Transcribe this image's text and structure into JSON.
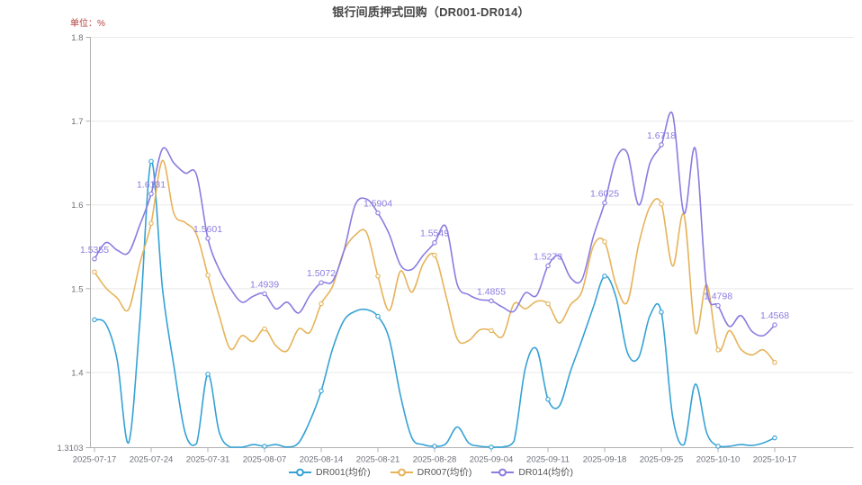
{
  "title": "银行间质押式回购（DR001-DR014）",
  "unit_label": "单位：%",
  "colors": {
    "dr001": "#35a2d5",
    "dr007": "#e6b35a",
    "dr014": "#8a7ce0",
    "grid": "#e9e9e9",
    "axis": "#b0b0b0",
    "axis_text": "#6e7079",
    "annotation_text": "#8a7ce0",
    "title_text": "#464646",
    "unit_text": "#b5413b"
  },
  "chart_data": {
    "type": "line",
    "title": "银行间质押式回购（DR001-DR014）",
    "ylabel": "单位：%",
    "smooth": true,
    "grid": true,
    "legend_position": "bottom",
    "ylim": [
      1.3103,
      1.8
    ],
    "y_tick_labels": [
      "1.8",
      "1.7",
      "1.6",
      "1.5",
      "1.4",
      "1.3103"
    ],
    "y_tick_values": [
      1.8,
      1.7,
      1.6,
      1.5,
      1.4,
      1.3103
    ],
    "x_tick_labels": [
      "2025-07-17",
      "2025-07-24",
      "2025-07-31",
      "2025-08-07",
      "2025-08-14",
      "2025-08-21",
      "2025-08-28",
      "2025-09-04",
      "2025-09-11",
      "2025-09-18",
      "2025-09-25",
      "2025-10-10",
      "2025-10-17"
    ],
    "points_per_tick": 5,
    "point_count": 61,
    "series": [
      {
        "id": "dr001",
        "name": "DR001(均价)",
        "color": "#35a2d5",
        "values": [
          1.463,
          1.458,
          1.415,
          1.316,
          1.46,
          1.652,
          1.5,
          1.408,
          1.328,
          1.315,
          1.398,
          1.329,
          1.3103,
          1.3103,
          1.314,
          1.312,
          1.314,
          1.311,
          1.316,
          1.342,
          1.378,
          1.428,
          1.462,
          1.473,
          1.475,
          1.467,
          1.44,
          1.372,
          1.322,
          1.314,
          1.312,
          1.315,
          1.335,
          1.316,
          1.312,
          1.311,
          1.311,
          1.318,
          1.405,
          1.428,
          1.368,
          1.36,
          1.402,
          1.439,
          1.478,
          1.515,
          1.49,
          1.424,
          1.418,
          1.468,
          1.472,
          1.347,
          1.314,
          1.386,
          1.328,
          1.312,
          1.312,
          1.314,
          1.313,
          1.316,
          1.322
        ]
      },
      {
        "id": "dr007",
        "name": "DR007(均价)",
        "color": "#e6b35a",
        "values": [
          1.52,
          1.501,
          1.489,
          1.475,
          1.53,
          1.578,
          1.653,
          1.59,
          1.579,
          1.565,
          1.516,
          1.468,
          1.428,
          1.444,
          1.437,
          1.452,
          1.432,
          1.426,
          1.452,
          1.448,
          1.482,
          1.503,
          1.545,
          1.564,
          1.567,
          1.515,
          1.474,
          1.521,
          1.496,
          1.53,
          1.54,
          1.492,
          1.44,
          1.438,
          1.451,
          1.45,
          1.443,
          1.482,
          1.476,
          1.485,
          1.482,
          1.459,
          1.481,
          1.497,
          1.551,
          1.556,
          1.505,
          1.484,
          1.553,
          1.598,
          1.601,
          1.527,
          1.588,
          1.448,
          1.505,
          1.427,
          1.45,
          1.428,
          1.421,
          1.427,
          1.412
        ]
      },
      {
        "id": "dr014",
        "name": "DR014(均价)",
        "color": "#8a7ce0",
        "values": [
          1.5355,
          1.555,
          1.546,
          1.543,
          1.576,
          1.6131,
          1.667,
          1.65,
          1.638,
          1.636,
          1.5601,
          1.523,
          1.5,
          1.484,
          1.491,
          1.4939,
          1.476,
          1.484,
          1.471,
          1.492,
          1.5072,
          1.509,
          1.545,
          1.6,
          1.607,
          1.5904,
          1.565,
          1.528,
          1.523,
          1.54,
          1.5549,
          1.574,
          1.505,
          1.493,
          1.487,
          1.4855,
          1.478,
          1.473,
          1.495,
          1.492,
          1.5273,
          1.539,
          1.513,
          1.511,
          1.562,
          1.6025,
          1.655,
          1.662,
          1.6,
          1.65,
          1.6718,
          1.708,
          1.59,
          1.667,
          1.5,
          1.4798,
          1.455,
          1.468,
          1.449,
          1.444,
          1.4568
        ],
        "tick_point_labels": [
          "1.5355",
          "1.6131",
          "1.5601",
          "1.4939",
          "1.5072",
          "1.5904",
          "1.5549",
          "1.4855",
          "1.5273",
          "1.6025",
          "1.6718",
          "1.4798",
          "1.4568"
        ]
      }
    ]
  },
  "legend": {
    "items": [
      {
        "label": "DR001(均价)",
        "color": "#35a2d5"
      },
      {
        "label": "DR007(均价)",
        "color": "#e6b35a"
      },
      {
        "label": "DR014(均价)",
        "color": "#8a7ce0"
      }
    ]
  }
}
